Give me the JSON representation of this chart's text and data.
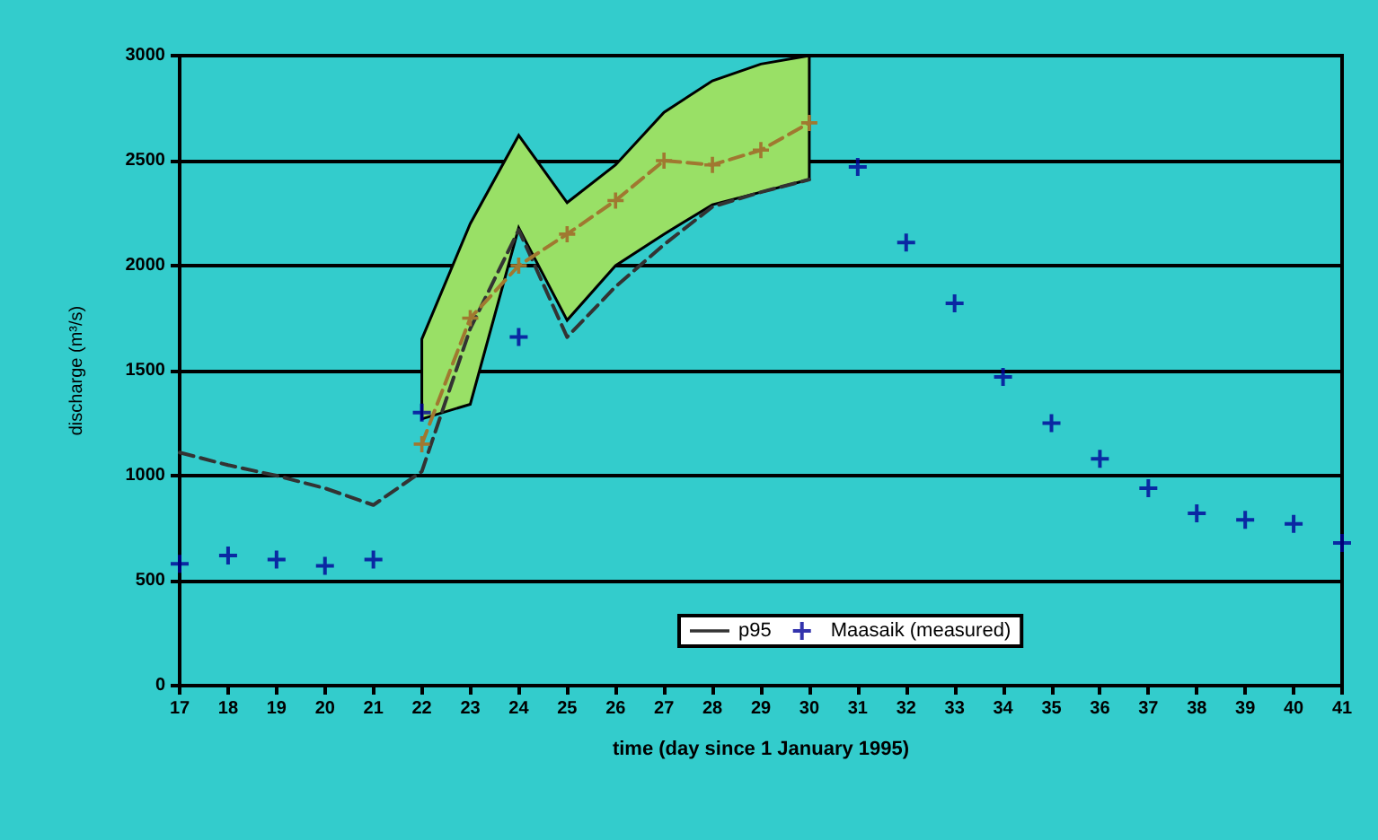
{
  "chart_data": {
    "type": "line",
    "xlabel": "time (day since 1 January 1995)",
    "ylabel": "discharge (m³/s)",
    "xlim": [
      17,
      41
    ],
    "xticks": [
      17,
      18,
      19,
      20,
      21,
      22,
      23,
      24,
      25,
      26,
      27,
      28,
      29,
      30,
      31,
      32,
      33,
      34,
      35,
      36,
      37,
      38,
      39,
      40,
      41
    ],
    "ylim": [
      0,
      3000
    ],
    "yticks": [
      0,
      500,
      1000,
      1500,
      2000,
      2500,
      3000
    ],
    "grid": "y",
    "legend": "bottom",
    "series": [
      {
        "name": "p95",
        "color": "#333333",
        "line_style": "dashed",
        "marker": "none",
        "x": [
          17,
          18,
          19,
          20,
          21,
          22,
          23,
          24,
          25,
          26,
          27,
          28,
          29,
          30
        ],
        "values": [
          1110,
          1050,
          1000,
          940,
          860,
          1020,
          1700,
          2170,
          1660,
          1900,
          2100,
          2280,
          2350,
          2410
        ]
      },
      {
        "name": "Maasaik (measured)",
        "type": "scatter",
        "color": "#000099",
        "marker": "cross",
        "x": [
          17,
          18,
          19,
          20,
          21,
          22,
          24,
          31,
          32,
          33,
          34,
          35,
          36,
          37,
          38,
          39,
          40,
          41
        ],
        "values": [
          580,
          620,
          600,
          570,
          600,
          1300,
          1660,
          2470,
          2110,
          1820,
          1470,
          1250,
          1080,
          940,
          820,
          790,
          770,
          680
        ]
      },
      {
        "color": "#a07830",
        "line_style": "dashed",
        "marker": "cross",
        "x": [
          22,
          23,
          24,
          25,
          26,
          27,
          28,
          29,
          30
        ],
        "values": [
          1150,
          1750,
          2000,
          2150,
          2310,
          2500,
          2480,
          2550,
          2680
        ],
        "lower": [
          1270,
          1340,
          2180,
          1740,
          2000,
          2150,
          2290,
          2350,
          2410
        ],
        "upper": [
          1650,
          2200,
          2620,
          2300,
          2480,
          2730,
          2880,
          2960,
          3000
        ]
      }
    ]
  }
}
